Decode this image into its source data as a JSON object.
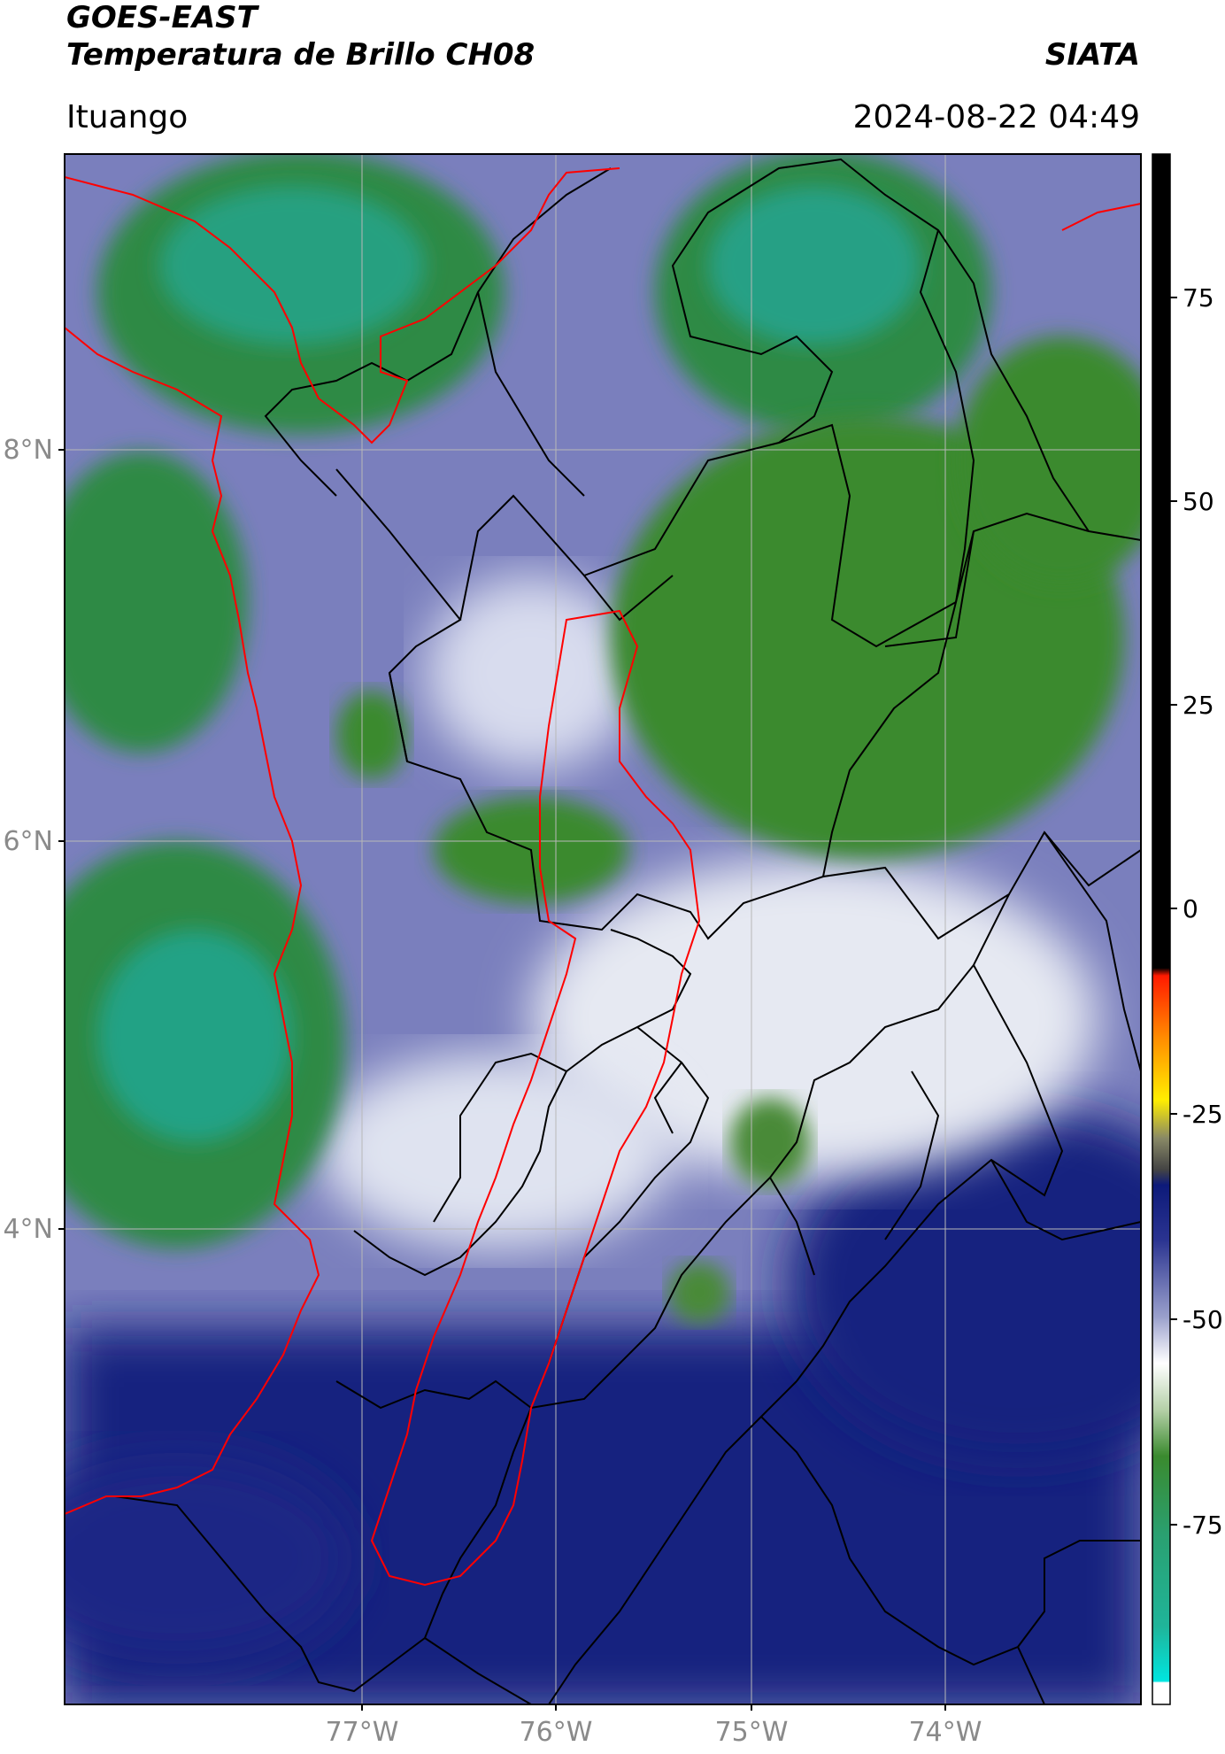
{
  "header": {
    "title_line1": "GOES-EAST",
    "title_line2": "Temperatura de Brillo CH08",
    "brand": "SIATA",
    "location": "Ituango",
    "timestamp": "2024-08-22 04:49"
  },
  "map": {
    "lat_labels": [
      "8°N",
      "6°N",
      "4°N"
    ],
    "lon_labels": [
      "77°W",
      "76°W",
      "75°W",
      "74°W"
    ],
    "gridlines": true
  },
  "colorbar": {
    "ticks": [
      "75",
      "50",
      "25",
      "0",
      "-25",
      "-50",
      "-75"
    ],
    "colors": {
      "black": "#000000",
      "red": "#ff1a00",
      "orange": "#ff8c00",
      "yellow": "#ffee00",
      "gray": "#555555",
      "navy": "#0d1a7a",
      "lavender": "#9aa0cc",
      "white": "#ffffff",
      "green": "#3a8a2e",
      "teal": "#1fb59a",
      "cyan": "#00e5e0"
    }
  },
  "borders": {
    "antioquia_color": "#ff0000",
    "department_color": "#000000"
  }
}
